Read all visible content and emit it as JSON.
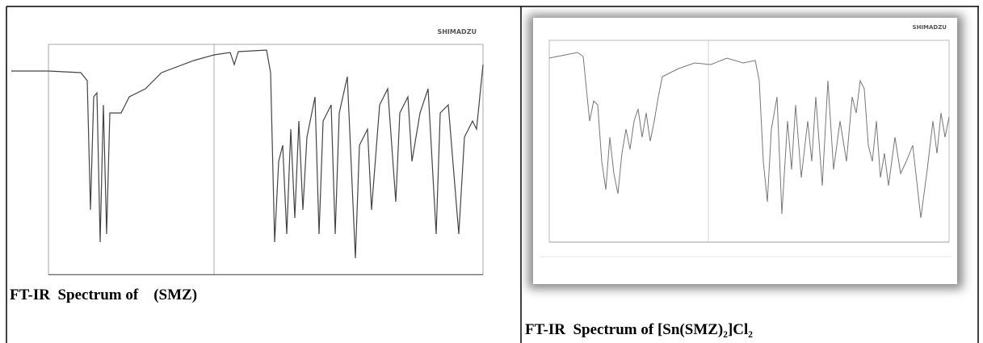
{
  "left": {
    "logo": "SHIMADZU",
    "caption": "FT-IR  Spectrum of    (SMZ)"
  },
  "right": {
    "logo": "SHIMADZU",
    "caption": "FT-IR  Spectrum of [Sn(SMZ)₂]Cl₂"
  }
}
